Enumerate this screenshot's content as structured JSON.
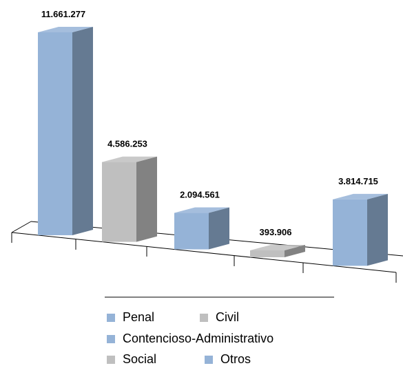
{
  "chart_data": {
    "type": "bar3d",
    "categories": [
      "Penal",
      "Civil",
      "Contencioso-Administrativo",
      "Social",
      "Otros"
    ],
    "values": [
      11661277,
      4586253,
      2094561,
      393906,
      3814715
    ],
    "value_labels": [
      "11.661.277",
      "4.586.253",
      "2.094.561",
      "393.906",
      "3.814.715"
    ],
    "colors": [
      "#95b3d7",
      "#bfbfbf",
      "#95b3d7",
      "#bfbfbf",
      "#95b3d7"
    ],
    "legend": "bottom"
  }
}
